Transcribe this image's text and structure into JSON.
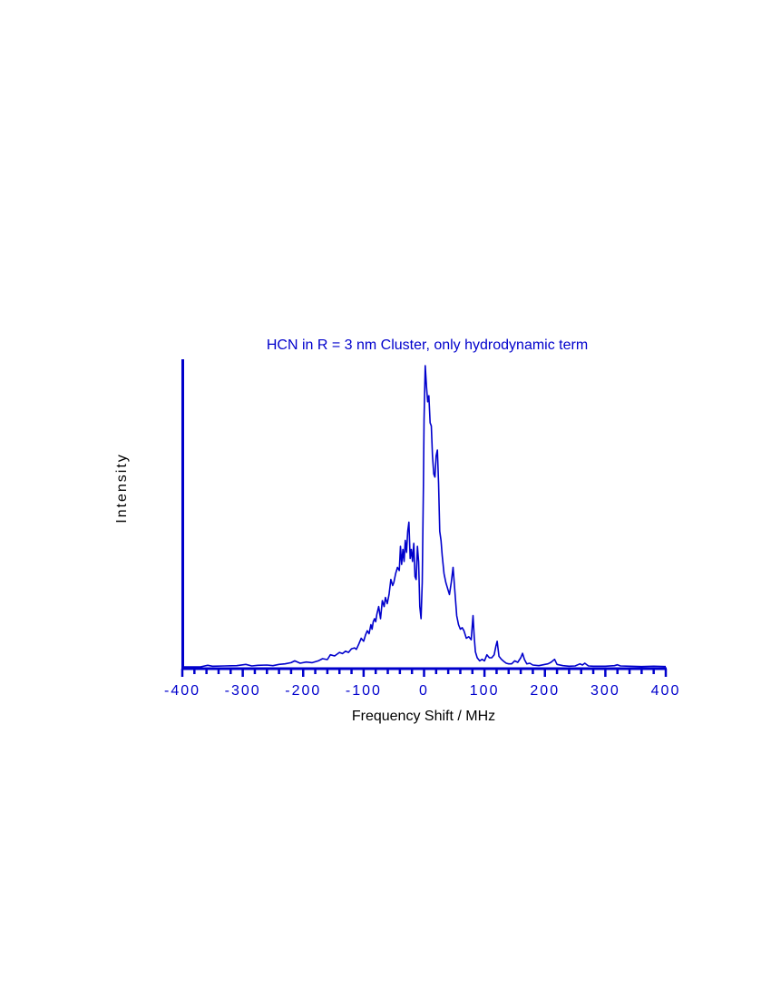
{
  "chart_data": {
    "type": "line",
    "title": "HCN in R = 3 nm Cluster, only hydrodynamic term",
    "xlabel": "Frequency Shift / MHz",
    "ylabel": "Intensity",
    "xlim": [
      -400,
      400
    ],
    "ylim": [
      0,
      1
    ],
    "x_ticks": [
      -400,
      -300,
      -200,
      -100,
      0,
      100,
      200,
      300,
      400
    ],
    "x_tick_labels": [
      "-400",
      "-300",
      "-200",
      "-100",
      "0",
      "100",
      "200",
      "300",
      "400"
    ],
    "minor_tick_step": 20,
    "y_ticks_shown": false,
    "grid": false,
    "color": "#0000cc",
    "series": [
      {
        "x": [
          -400,
          -370,
          -358,
          -350,
          -330,
          -310,
          -295,
          -285,
          -275,
          -260,
          -250,
          -240,
          -230,
          -220,
          -214,
          -205,
          -195,
          -185,
          -175,
          -168,
          -160,
          -155,
          -148,
          -140,
          -135,
          -130,
          -125,
          -120,
          -115,
          -112,
          -108,
          -104,
          -100,
          -97,
          -94,
          -91,
          -88,
          -86,
          -84,
          -82,
          -80,
          -78,
          -75,
          -72,
          -69,
          -66,
          -64,
          -61,
          -58,
          -55,
          -52,
          -50,
          -47,
          -44,
          -41,
          -39,
          -37,
          -35,
          -33,
          -31,
          -29,
          -27,
          -25,
          -23,
          -21,
          -19,
          -17,
          -15,
          -13,
          -11,
          -9,
          -7,
          -5,
          -3,
          -1,
          0,
          2,
          4,
          6,
          8,
          10,
          12,
          14,
          16,
          18,
          20,
          22,
          24,
          26,
          28,
          30,
          33,
          36,
          39,
          42,
          45,
          48,
          51,
          54,
          57,
          60,
          63,
          66,
          70,
          74,
          78,
          81,
          83,
          85,
          88,
          92,
          96,
          100,
          104,
          108,
          112,
          116,
          119,
          121,
          124,
          128,
          132,
          136,
          140,
          145,
          150,
          155,
          160,
          163,
          166,
          170,
          175,
          180,
          190,
          200,
          205,
          210,
          213,
          216,
          220,
          230,
          240,
          250,
          258,
          262,
          266,
          272,
          280,
          300,
          315,
          320,
          325,
          340,
          360,
          380,
          400
        ],
        "y": [
          0.0,
          0.0,
          0.005,
          0.002,
          0.003,
          0.004,
          0.008,
          0.003,
          0.005,
          0.006,
          0.004,
          0.008,
          0.01,
          0.014,
          0.02,
          0.012,
          0.016,
          0.014,
          0.02,
          0.027,
          0.024,
          0.04,
          0.036,
          0.048,
          0.044,
          0.052,
          0.048,
          0.06,
          0.063,
          0.058,
          0.075,
          0.095,
          0.085,
          0.105,
          0.12,
          0.11,
          0.14,
          0.125,
          0.15,
          0.16,
          0.15,
          0.175,
          0.2,
          0.16,
          0.22,
          0.2,
          0.23,
          0.21,
          0.24,
          0.29,
          0.27,
          0.28,
          0.31,
          0.33,
          0.32,
          0.4,
          0.34,
          0.39,
          0.35,
          0.42,
          0.38,
          0.45,
          0.48,
          0.36,
          0.39,
          0.35,
          0.41,
          0.3,
          0.29,
          0.4,
          0.35,
          0.2,
          0.16,
          0.28,
          0.6,
          0.82,
          1.0,
          0.93,
          0.88,
          0.9,
          0.81,
          0.8,
          0.7,
          0.64,
          0.63,
          0.7,
          0.72,
          0.61,
          0.45,
          0.42,
          0.37,
          0.31,
          0.28,
          0.26,
          0.24,
          0.28,
          0.33,
          0.25,
          0.17,
          0.14,
          0.125,
          0.13,
          0.12,
          0.095,
          0.1,
          0.09,
          0.17,
          0.1,
          0.05,
          0.03,
          0.02,
          0.025,
          0.02,
          0.04,
          0.03,
          0.03,
          0.04,
          0.07,
          0.085,
          0.035,
          0.025,
          0.018,
          0.012,
          0.01,
          0.01,
          0.02,
          0.015,
          0.03,
          0.045,
          0.025,
          0.01,
          0.012,
          0.006,
          0.004,
          0.008,
          0.01,
          0.015,
          0.02,
          0.025,
          0.008,
          0.004,
          0.002,
          0.003,
          0.01,
          0.006,
          0.012,
          0.003,
          0.002,
          0.002,
          0.004,
          0.007,
          0.003,
          0.002,
          0.001,
          0.002,
          0.001
        ]
      }
    ]
  }
}
